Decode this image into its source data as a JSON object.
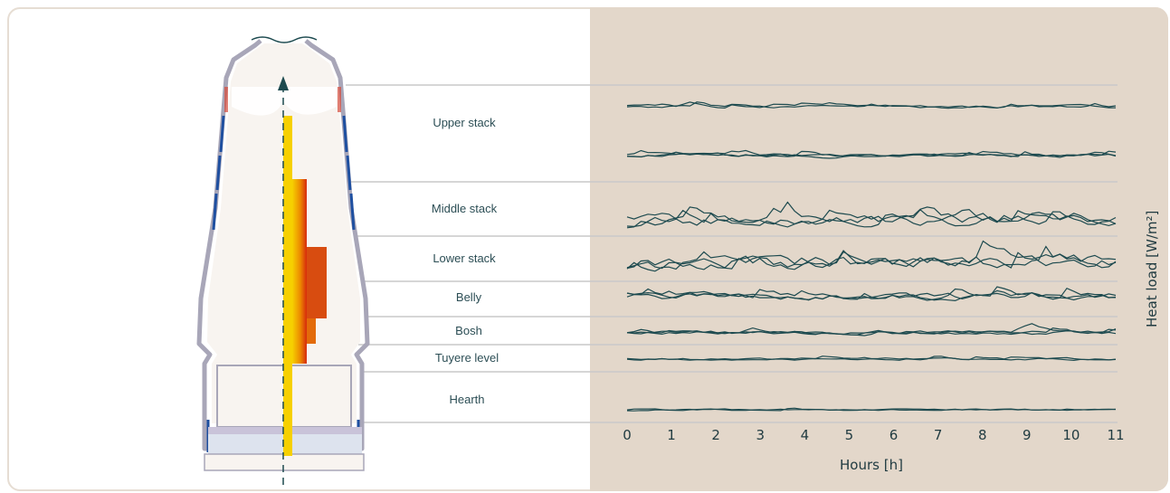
{
  "zones": [
    {
      "name": "Upper stack"
    },
    {
      "name": "Middle stack"
    },
    {
      "name": "Lower stack"
    },
    {
      "name": "Belly"
    },
    {
      "name": "Bosh"
    },
    {
      "name": "Tuyere level"
    },
    {
      "name": "Hearth"
    }
  ],
  "chart_data": {
    "type": "line",
    "xlabel": "Hours [h]",
    "ylabel": "Heat load [W/m²]",
    "x_ticks": [
      "0",
      "1",
      "2",
      "3",
      "4",
      "5",
      "6",
      "7",
      "8",
      "9",
      "10",
      "11"
    ],
    "xlim": [
      0,
      11
    ],
    "panels": [
      {
        "zone": "Upper stack (upper band)",
        "series_count": 2
      },
      {
        "zone": "Upper stack (lower band)",
        "series_count": 3
      },
      {
        "zone": "Middle stack",
        "series_count": 3
      },
      {
        "zone": "Lower stack",
        "series_count": 3
      },
      {
        "zone": "Belly",
        "series_count": 3
      },
      {
        "zone": "Bosh",
        "series_count": 3
      },
      {
        "zone": "Tuyere level",
        "series_count": 2
      },
      {
        "zone": "Hearth",
        "series_count": 2
      }
    ]
  },
  "colors": {
    "panel_bg": "#e3d7ca",
    "line": "#1d4a4f",
    "label": "#2c4e55",
    "separator": "#c9c9c9",
    "shell": "#a8a6b8",
    "cooling": "#1e4fa0",
    "refractory": "#f8f4f0",
    "heat_low": "#f6d000",
    "heat_high": "#d62a0d"
  },
  "icons": {
    "arrow": "gas-flow-arrow-icon"
  }
}
